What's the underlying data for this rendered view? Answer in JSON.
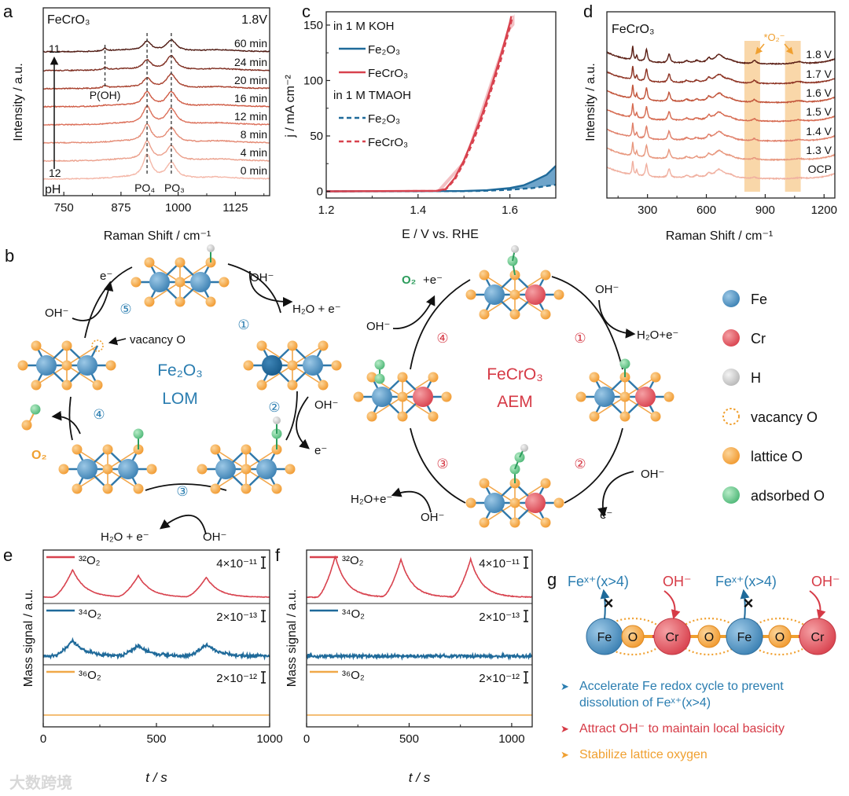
{
  "panel_labels": {
    "a": "a",
    "b": "b",
    "c": "c",
    "d": "d",
    "e": "e",
    "f": "f",
    "g": "g"
  },
  "colors": {
    "fe_blue": "#4a90c0",
    "cr_red": "#e0505a",
    "h_gray": "#cfcfcf",
    "o_orange": "#f5a94a",
    "o_green": "#6cc48c",
    "text_blue": "#2a7db0",
    "text_red": "#d63a46",
    "text_orange": "#f0a030"
  },
  "chart_data": [
    {
      "id": "a",
      "type": "line",
      "title": "FeCrO₃",
      "condition": "1.8V",
      "xlabel": "Raman Shift / cm⁻¹",
      "ylabel": "Intensity / a.u.",
      "xlim": [
        705,
        1200
      ],
      "xticks": [
        750,
        875,
        1000,
        1125
      ],
      "peak_labels": [
        {
          "name": "P(OH)",
          "x": 840
        },
        {
          "name": "PO₄",
          "x": 932
        },
        {
          "name": "PO₃",
          "x": 985
        }
      ],
      "ph_arrow": {
        "label": "pH",
        "bottom": "12",
        "top": "11"
      },
      "series": [
        {
          "name": "0 min",
          "PO4": 0.75,
          "PO3": 0.5,
          "POH": 0,
          "color": "#f4b7a8"
        },
        {
          "name": "4 min",
          "PO4": 0.6,
          "PO3": 0.45,
          "POH": 0,
          "color": "#eba08c"
        },
        {
          "name": "8 min",
          "PO4": 0.55,
          "PO3": 0.45,
          "POH": 0,
          "color": "#e48a74"
        },
        {
          "name": "12 min",
          "PO4": 0.55,
          "PO3": 0.5,
          "POH": 0,
          "color": "#dc705a"
        },
        {
          "name": "16 min",
          "PO4": 0.45,
          "PO3": 0.45,
          "POH": 0.02,
          "color": "#cf5a43"
        },
        {
          "name": "20 min",
          "PO4": 0.3,
          "PO3": 0.45,
          "POH": 0.08,
          "color": "#a8412e"
        },
        {
          "name": "24 min",
          "PO4": 0.3,
          "PO3": 0.45,
          "POH": 0.08,
          "color": "#7e2d20"
        },
        {
          "name": "60 min",
          "PO4": 0.3,
          "PO3": 0.35,
          "POH": 0.08,
          "color": "#4f1a12"
        }
      ]
    },
    {
      "id": "c",
      "type": "line",
      "xlabel": "E / V vs. RHE",
      "ylabel": "j / mA cm⁻²",
      "xlim": [
        1.2,
        1.7
      ],
      "ylim": [
        -6,
        162
      ],
      "xticks": [
        1.2,
        1.4,
        1.6
      ],
      "yticks": [
        0,
        50,
        100,
        150
      ],
      "legend_groups": [
        "in 1 M KOH",
        "in 1 M TMAOH"
      ],
      "series": [
        {
          "name": "Fe₂O₃",
          "group": "in 1 M KOH",
          "style": "solid",
          "color": "#1f6a9a",
          "points": [
            [
              1.2,
              0
            ],
            [
              1.5,
              0.3
            ],
            [
              1.55,
              1
            ],
            [
              1.6,
              3
            ],
            [
              1.63,
              5.5
            ],
            [
              1.65,
              9
            ],
            [
              1.68,
              15
            ],
            [
              1.7,
              23
            ]
          ]
        },
        {
          "name": "FeCrO₃",
          "group": "in 1 M KOH",
          "style": "solid",
          "color": "#d8424e",
          "points": [
            [
              1.2,
              0
            ],
            [
              1.44,
              0.5
            ],
            [
              1.46,
              2
            ],
            [
              1.48,
              12
            ],
            [
              1.5,
              28
            ],
            [
              1.52,
              48
            ],
            [
              1.54,
              70
            ],
            [
              1.56,
              95
            ],
            [
              1.58,
              122
            ],
            [
              1.6,
              152
            ],
            [
              1.603,
              158
            ]
          ]
        },
        {
          "name": "Fe₂O₃",
          "group": "in 1 M TMAOH",
          "style": "dashed",
          "color": "#1f6a9a",
          "points": [
            [
              1.2,
              0
            ],
            [
              1.5,
              0.2
            ],
            [
              1.55,
              0.6
            ],
            [
              1.6,
              1.5
            ],
            [
              1.65,
              3
            ],
            [
              1.7,
              6
            ]
          ]
        },
        {
          "name": "FeCrO₃",
          "group": "in 1 M TMAOH",
          "style": "dashed",
          "color": "#d8424e",
          "points": [
            [
              1.2,
              0
            ],
            [
              1.44,
              0.4
            ],
            [
              1.46,
              1.6
            ],
            [
              1.48,
              10.5
            ],
            [
              1.5,
              26
            ],
            [
              1.52,
              45
            ],
            [
              1.54,
              67
            ],
            [
              1.56,
              92
            ],
            [
              1.58,
              118
            ],
            [
              1.6,
              148
            ],
            [
              1.606,
              158
            ]
          ]
        }
      ]
    },
    {
      "id": "d",
      "type": "line",
      "title": "FeCrO₃",
      "annotation": "*O₂⁻",
      "xlabel": "Raman Shift / cm⁻¹",
      "ylabel": "Intensity / a.u.",
      "xlim": [
        93,
        1255
      ],
      "xticks": [
        300,
        600,
        900,
        1200
      ],
      "highlight_bands": [
        [
          794,
          874
        ],
        [
          1001,
          1081
        ]
      ],
      "series": [
        {
          "name": "OCP",
          "o2": 0.0,
          "color": "#f0b0a0"
        },
        {
          "name": "1.3 V",
          "o2": 0.02,
          "color": "#e8987f"
        },
        {
          "name": "1.4 V",
          "o2": 0.03,
          "color": "#e0806a"
        },
        {
          "name": "1.5 V",
          "o2": 0.04,
          "color": "#d66a50"
        },
        {
          "name": "1.6 V",
          "o2": 0.05,
          "color": "#c2543a"
        },
        {
          "name": "1.7 V",
          "o2": 0.07,
          "color": "#8e3424"
        },
        {
          "name": "1.8 V",
          "o2": 0.08,
          "color": "#5a1e14"
        }
      ]
    },
    {
      "id": "e",
      "type": "line",
      "xlabel": "t / s",
      "ylabel": "Mass signal / a.u.",
      "xlim": [
        0,
        1000
      ],
      "xticks": [
        0,
        500,
        1000
      ],
      "series": [
        {
          "name": "³²O₂",
          "scale": "4×10⁻¹¹",
          "color": "#d8424e",
          "peaks_t": [
            130,
            420,
            720
          ],
          "peak_heights": [
            1.0,
            0.78,
            0.72
          ],
          "noise": 0.03
        },
        {
          "name": "³⁴O₂",
          "scale": "2×10⁻¹³",
          "color": "#1f6a9a",
          "peaks_t": [
            130,
            420,
            720
          ],
          "peak_heights": [
            1.0,
            0.7,
            0.75
          ],
          "noise": 0.18
        },
        {
          "name": "³⁶O₂",
          "scale": "2×10⁻¹²",
          "color": "#f0a848",
          "peaks_t": [],
          "peak_heights": [],
          "noise": 0.02
        }
      ]
    },
    {
      "id": "f",
      "type": "line",
      "xlabel": "t / s",
      "ylabel": "Mass signal / a.u.",
      "xlim": [
        0,
        1100
      ],
      "xticks": [
        0,
        500,
        1000
      ],
      "series": [
        {
          "name": "³²O₂",
          "scale": "4×10⁻¹¹",
          "color": "#d8424e",
          "peaks_t": [
            140,
            460,
            800
          ],
          "peak_heights": [
            1.0,
            0.93,
            0.93
          ],
          "noise": 0.03
        },
        {
          "name": "³⁴O₂",
          "scale": "2×10⁻¹³",
          "color": "#1f6a9a",
          "peaks_t": [],
          "peak_heights": [],
          "noise": 0.15
        },
        {
          "name": "³⁶O₂",
          "scale": "2×10⁻¹²",
          "color": "#f0a848",
          "peaks_t": [],
          "peak_heights": [],
          "noise": 0.02
        }
      ]
    }
  ],
  "schematic": {
    "lom": {
      "title": "Fe₂O₃",
      "mechanism": "LOM",
      "steps": [
        "①",
        "②",
        "③",
        "④",
        "⑤"
      ],
      "e_top": "e⁻",
      "oh_5": "OH⁻",
      "vacancy": "vacancy O",
      "oh_1": "OH⁻",
      "out_1": "H₂O + e⁻",
      "oh_2": "OH⁻",
      "e_2": "e⁻",
      "out_3": "H₂O + e⁻",
      "oh_3": "OH⁻",
      "o2": "O₂"
    },
    "aem": {
      "title": "FeCrO₃",
      "mechanism": "AEM",
      "steps": [
        "①",
        "②",
        "③",
        "④"
      ],
      "o2": "O₂",
      "plus_e": "+e⁻",
      "oh_4": "OH⁻",
      "oh_1": "OH⁻",
      "out_1": "H₂O+e⁻",
      "oh_2": "OH⁻",
      "e_2": "e⁻",
      "out_3": "H₂O+e⁻",
      "oh_3": "OH⁻"
    },
    "legend": [
      {
        "label": "Fe",
        "kind": "fe"
      },
      {
        "label": "Cr",
        "kind": "cr"
      },
      {
        "label": "H",
        "kind": "h"
      },
      {
        "label": "vacancy O",
        "kind": "vac"
      },
      {
        "label": "lattice O",
        "kind": "o"
      },
      {
        "label": "adsorbed O",
        "kind": "ads"
      }
    ]
  },
  "panel_g": {
    "top_labels": [
      "Feˣ⁺(x>4)",
      "OH⁻",
      "Feˣ⁺(x>4)",
      "OH⁻"
    ],
    "atoms": [
      "Fe",
      "O",
      "Cr",
      "O",
      "Fe",
      "O",
      "Cr"
    ],
    "block_mark": "×",
    "bullet_glyph": "➤",
    "bullets": [
      {
        "lines": [
          "Accelerate Fe redox cycle to prevent",
          "dissolution of Feˣ⁺(x>4)"
        ],
        "color": "#2a7db0"
      },
      {
        "lines": [
          "Attract OH⁻  to maintain local basicity"
        ],
        "color": "#d63a46"
      },
      {
        "lines": [
          "Stabilize lattice oxygen"
        ],
        "color": "#f0a030"
      }
    ]
  },
  "watermark": "大数跨境"
}
